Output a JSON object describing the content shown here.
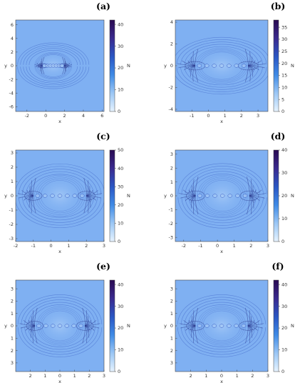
{
  "chart_data": [
    {
      "type": "heatmap",
      "panel_label": "(a)",
      "xlabel": "x",
      "ylabel": "y",
      "colorbar_label": "N",
      "xlim": [
        -3.2,
        6.2
      ],
      "ylim": [
        -6.7,
        6.7
      ],
      "xticks": [
        -2,
        0,
        2,
        4,
        6
      ],
      "yticks": [
        -6,
        -4,
        -2,
        0,
        2,
        4,
        6
      ],
      "colorbar": {
        "min": 0,
        "max": 42,
        "ticks": [
          0,
          10,
          20,
          30,
          40
        ]
      },
      "structure": {
        "center": [
          0.8,
          0
        ],
        "lobe_sep": 1.1,
        "lobe_size": 0.9,
        "arc_scale": 3.6
      }
    },
    {
      "type": "heatmap",
      "panel_label": "(b)",
      "xlabel": "x",
      "ylabel": "y",
      "colorbar_label": "N",
      "xlim": [
        -2.0,
        3.6
      ],
      "ylim": [
        -4.2,
        4.2
      ],
      "xticks": [
        -1,
        0,
        1,
        2,
        3
      ],
      "yticks": [
        -4,
        -2,
        0,
        2,
        4
      ],
      "colorbar": {
        "min": 0,
        "max": 38,
        "ticks": [
          0,
          5,
          10,
          15,
          20,
          25,
          30,
          35
        ]
      },
      "structure": {
        "center": [
          0.8,
          0
        ],
        "lobe_sep": 1.6,
        "lobe_size": 1.1,
        "arc_scale": 2.8
      }
    },
    {
      "type": "heatmap",
      "panel_label": "(c)",
      "xlabel": "x",
      "ylabel": "y",
      "colorbar_label": "N",
      "xlim": [
        -2.0,
        3.0
      ],
      "ylim": [
        -3.2,
        3.2
      ],
      "xticks": [
        -2,
        -1,
        0,
        1,
        2,
        3
      ],
      "yticks": [
        -3,
        -2,
        -1,
        0,
        1,
        2,
        3
      ],
      "colorbar": {
        "min": 0,
        "max": 50,
        "ticks": [
          0,
          10,
          20,
          30,
          40,
          50
        ]
      },
      "structure": {
        "center": [
          0.5,
          0
        ],
        "lobe_sep": 1.5,
        "lobe_size": 0.9,
        "arc_scale": 2.4
      }
    },
    {
      "type": "heatmap",
      "panel_label": "(d)",
      "xlabel": "x",
      "ylabel": "y",
      "colorbar_label": "N",
      "xlim": [
        -2.5,
        3.0
      ],
      "ylim": [
        -3.3,
        3.3
      ],
      "xticks": [
        -2,
        -1,
        0,
        1,
        2,
        3
      ],
      "yticks": [
        -3,
        -2,
        -1,
        0,
        1,
        2,
        3
      ],
      "colorbar": {
        "min": 0,
        "max": 40,
        "ticks": [
          0,
          10,
          20,
          30,
          40
        ]
      },
      "structure": {
        "center": [
          0.3,
          0
        ],
        "lobe_sep": 1.6,
        "lobe_size": 1.0,
        "arc_scale": 2.5
      }
    },
    {
      "type": "heatmap",
      "panel_label": "(e)",
      "xlabel": "x",
      "ylabel": "y",
      "colorbar_label": "N",
      "xlim": [
        -3.0,
        3.0
      ],
      "ylim": [
        -3.7,
        3.7
      ],
      "xticks": [
        -2,
        -1,
        0,
        1,
        2,
        3
      ],
      "xtick_labels": [
        "2",
        "1",
        "0",
        "1",
        "2",
        "3"
      ],
      "yticks": [
        -3,
        -2,
        -1,
        0,
        1,
        2,
        3
      ],
      "ytick_labels": [
        "3",
        "2",
        "1",
        "0",
        "1",
        "2",
        "3"
      ],
      "colorbar": {
        "min": 0,
        "max": 42,
        "ticks": [
          0,
          10,
          20,
          30,
          40
        ]
      },
      "structure": {
        "center": [
          0,
          0
        ],
        "lobe_sep": 1.7,
        "lobe_size": 1.05,
        "arc_scale": 2.7
      }
    },
    {
      "type": "heatmap",
      "panel_label": "(f)",
      "xlabel": "x",
      "ylabel": "y",
      "colorbar_label": "N",
      "xlim": [
        -3.0,
        3.0
      ],
      "ylim": [
        -3.7,
        3.7
      ],
      "xticks": [
        -2,
        -1,
        0,
        1,
        2,
        3
      ],
      "xtick_labels": [
        "2",
        "1",
        "0",
        "1",
        "2",
        "3"
      ],
      "yticks": [
        -3,
        -2,
        -1,
        0,
        1,
        2,
        3
      ],
      "ytick_labels": [
        "3",
        "2",
        "1",
        "0",
        "1",
        "2",
        "3"
      ],
      "colorbar": {
        "min": 0,
        "max": 42,
        "ticks": [
          0,
          10,
          20,
          30,
          40
        ]
      },
      "structure": {
        "center": [
          0,
          0
        ],
        "lobe_sep": 1.7,
        "lobe_size": 1.05,
        "arc_scale": 2.7
      }
    }
  ],
  "colors": {
    "background_field": "#7fb0f2",
    "field_light": "#a9ccf7",
    "structure_line": "#3b5fc4",
    "structure_dark": "#2c3b8e",
    "colormap": [
      "#e6f3ff",
      "#9cc7f5",
      "#3f8be6",
      "#2a56c4",
      "#3a2a8f",
      "#2a0a52"
    ]
  }
}
